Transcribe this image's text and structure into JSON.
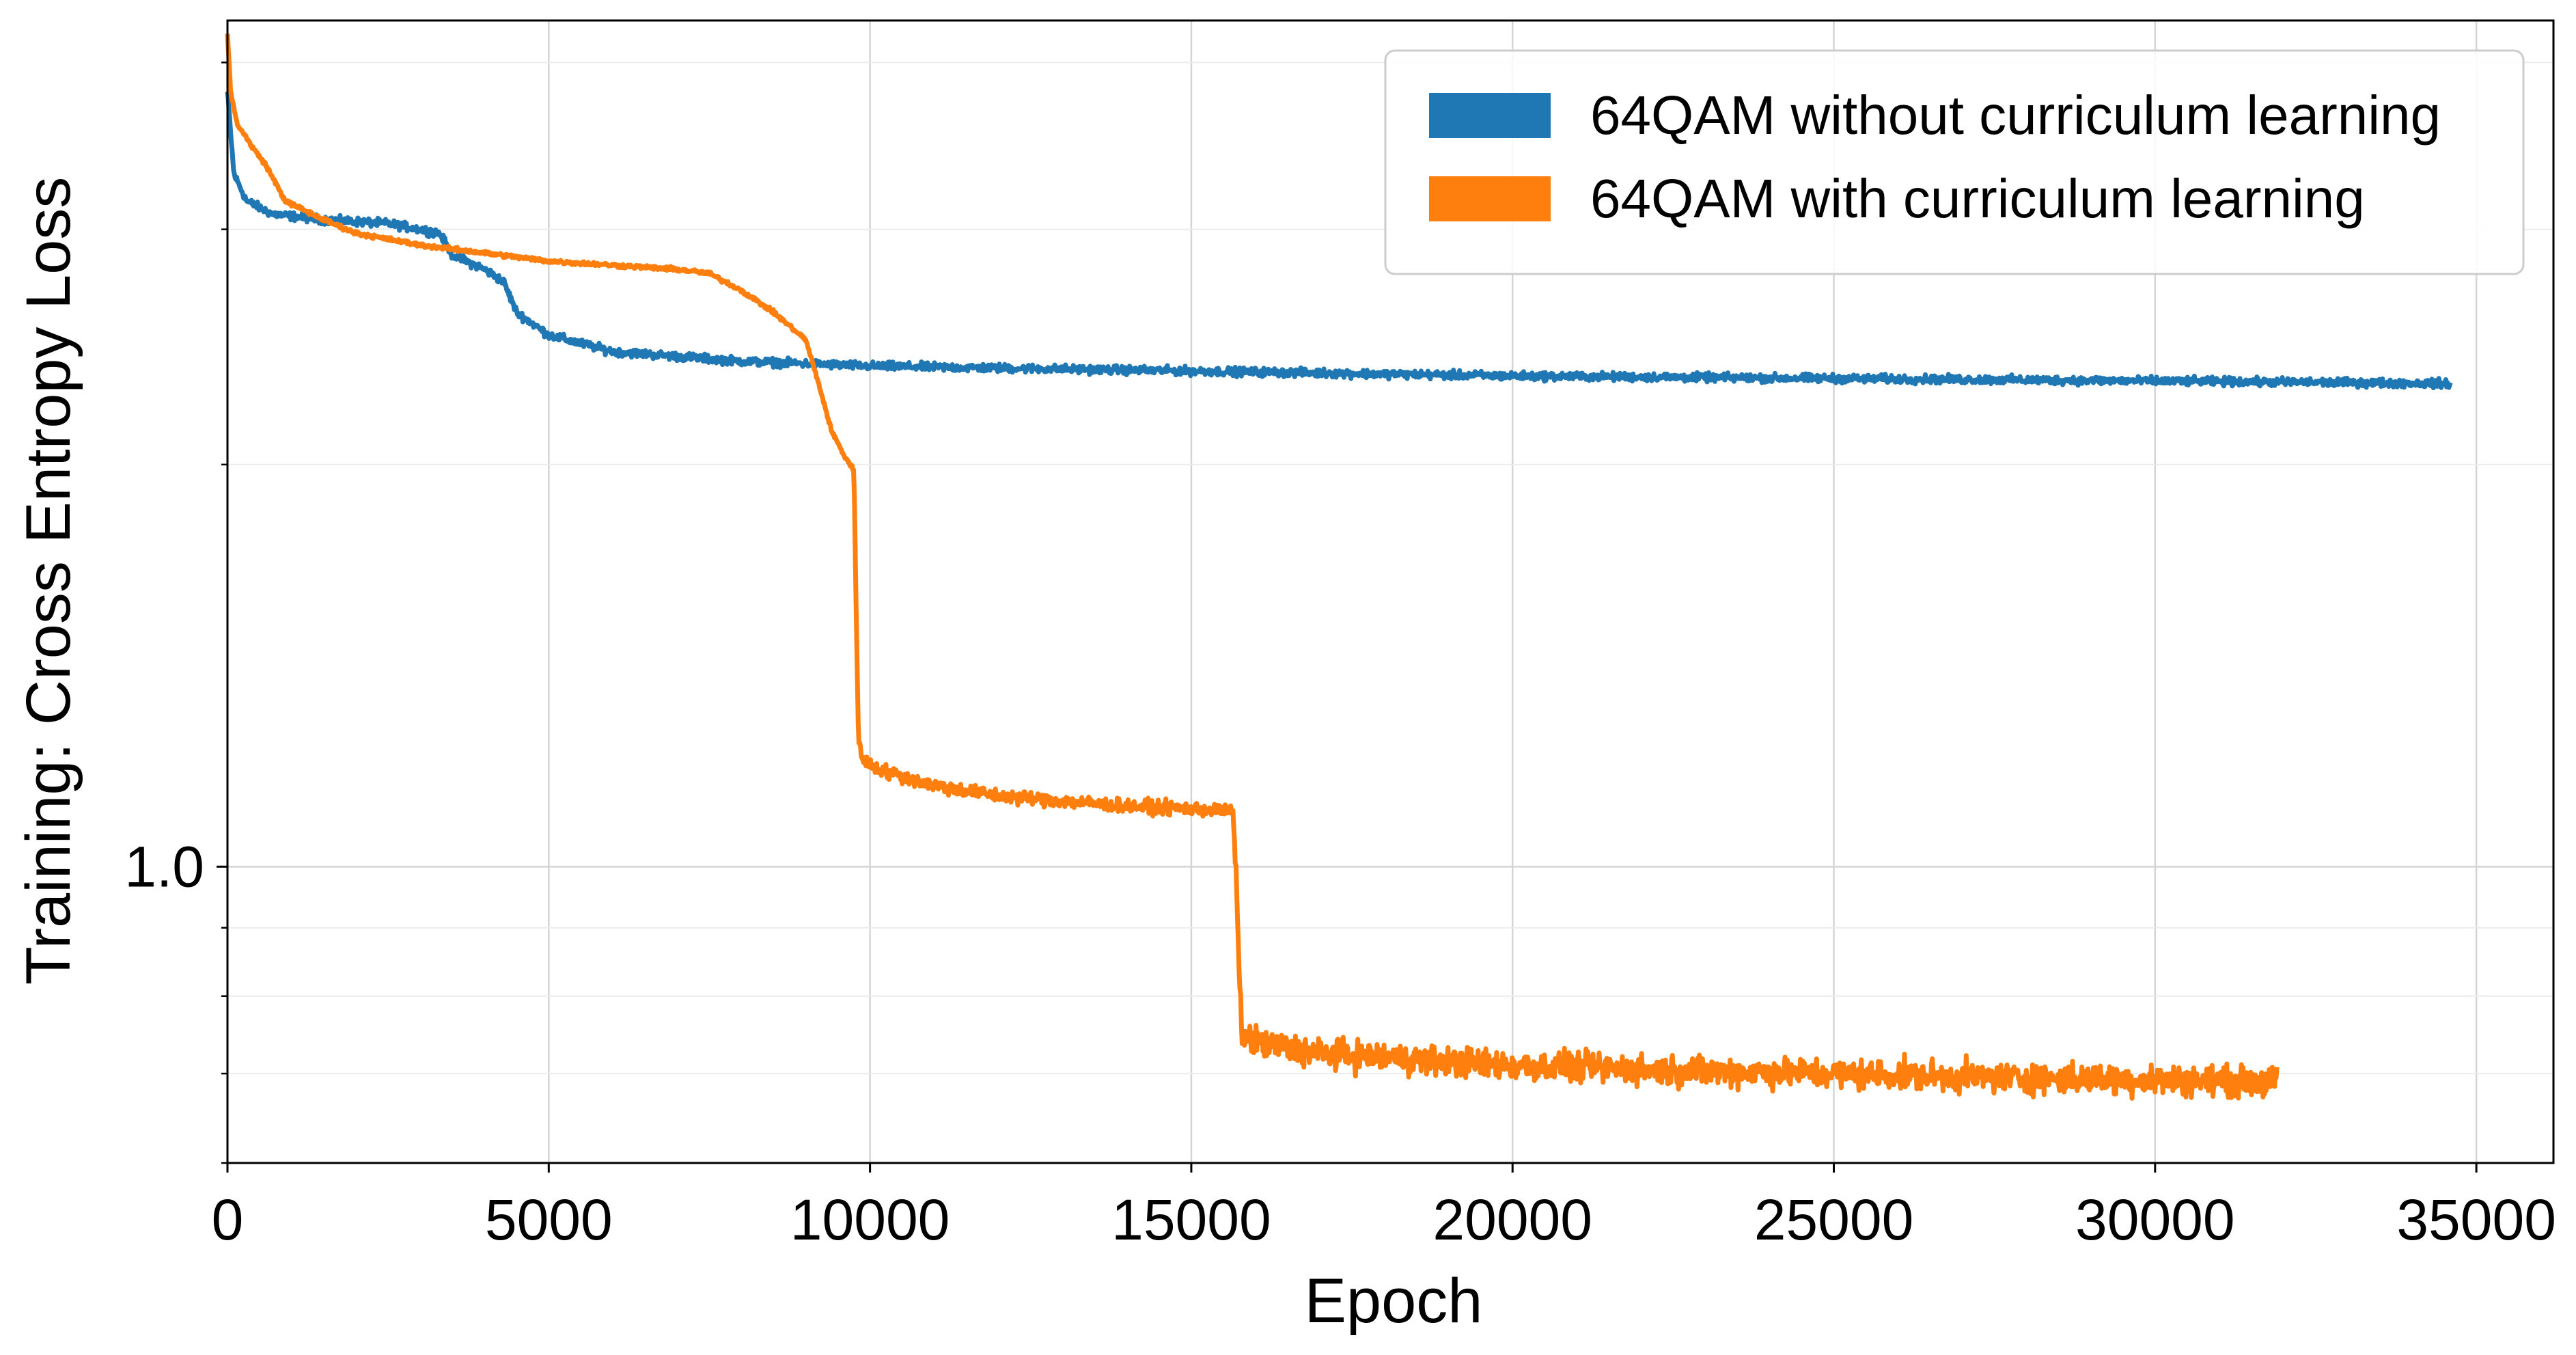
{
  "chart_data": {
    "type": "line",
    "xlabel": "Epoch",
    "ylabel": "Training: Cross Entropy Loss",
    "yscale": "log",
    "xlim": [
      0,
      36200
    ],
    "ylim": [
      0.6,
      4.3
    ],
    "grid": true,
    "legend_position": "top-right",
    "x_ticks": [
      0,
      5000,
      10000,
      15000,
      20000,
      25000,
      30000,
      35000
    ],
    "x_tick_labels": [
      "0",
      "5000",
      "10000",
      "15000",
      "20000",
      "25000",
      "30000",
      "35000"
    ],
    "y_ticks": [
      1.0
    ],
    "y_tick_labels": [
      "1.0"
    ],
    "series": [
      {
        "name": "64QAM without curriculum learning",
        "color": "#1f77b4",
        "noise": 0.006,
        "points": [
          [
            0,
            3.8
          ],
          [
            100,
            3.3
          ],
          [
            300,
            3.15
          ],
          [
            700,
            3.08
          ],
          [
            1500,
            3.05
          ],
          [
            2500,
            3.03
          ],
          [
            3000,
            3.0
          ],
          [
            3300,
            2.98
          ],
          [
            3500,
            2.87
          ],
          [
            4000,
            2.8
          ],
          [
            4300,
            2.74
          ],
          [
            4500,
            2.6
          ],
          [
            5000,
            2.5
          ],
          [
            6000,
            2.43
          ],
          [
            7000,
            2.41
          ],
          [
            8000,
            2.39
          ],
          [
            10000,
            2.37
          ],
          [
            15000,
            2.35
          ],
          [
            20000,
            2.33
          ],
          [
            25000,
            2.32
          ],
          [
            30000,
            2.31
          ],
          [
            34600,
            2.3
          ]
        ]
      },
      {
        "name": "64QAM with curriculum learning",
        "color": "#ff7f0e",
        "points": [
          [
            0,
            4.2
          ],
          [
            50,
            3.8
          ],
          [
            150,
            3.6
          ],
          [
            400,
            3.45
          ],
          [
            600,
            3.35
          ],
          [
            900,
            3.15
          ],
          [
            1500,
            3.05
          ],
          [
            2000,
            2.98
          ],
          [
            3000,
            2.92
          ],
          [
            4000,
            2.88
          ],
          [
            5000,
            2.84
          ],
          [
            6000,
            2.82
          ],
          [
            7000,
            2.8
          ],
          [
            7500,
            2.78
          ],
          [
            8000,
            2.7
          ],
          [
            8500,
            2.6
          ],
          [
            9000,
            2.48
          ],
          [
            9200,
            2.3
          ],
          [
            9400,
            2.12
          ],
          [
            9600,
            2.03
          ],
          [
            9750,
            1.98
          ],
          [
            9780,
            1.6
          ],
          [
            9820,
            1.25
          ],
          [
            9900,
            1.2
          ],
          [
            10200,
            1.18
          ],
          [
            11000,
            1.15
          ],
          [
            12000,
            1.13
          ],
          [
            13000,
            1.12
          ],
          [
            14000,
            1.11
          ],
          [
            15000,
            1.105
          ],
          [
            15650,
            1.1
          ],
          [
            15700,
            0.98
          ],
          [
            15750,
            0.82
          ],
          [
            15800,
            0.745
          ],
          [
            16200,
            0.735
          ],
          [
            17000,
            0.725
          ],
          [
            18000,
            0.72
          ],
          [
            20000,
            0.71
          ],
          [
            22000,
            0.705
          ],
          [
            25000,
            0.7
          ],
          [
            28000,
            0.695
          ],
          [
            31900,
            0.69
          ]
        ],
        "noise_segments": [
          [
            9800,
            15700,
            0.01
          ],
          [
            15750,
            31900,
            0.022
          ]
        ]
      }
    ]
  }
}
